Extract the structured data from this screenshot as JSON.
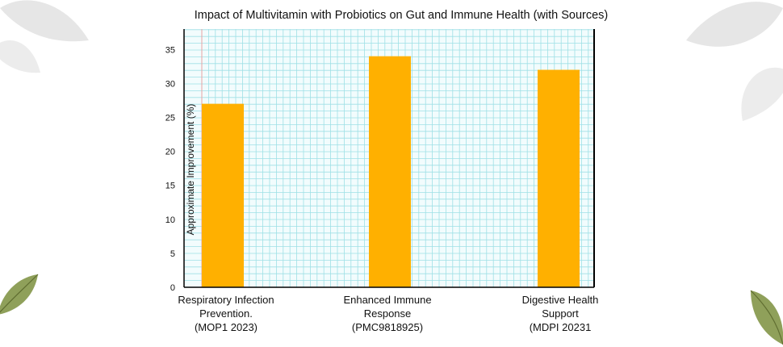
{
  "chart_data": {
    "type": "bar",
    "title": "Impact of Multivitamin with Probiotics on Gut and Immune Health (with Sources)",
    "xlabel": "",
    "ylabel": "Approximate Improvement (%)",
    "ylim": [
      0,
      38
    ],
    "yticks": [
      0,
      5,
      10,
      15,
      20,
      25,
      30,
      35
    ],
    "grid": true,
    "categories": [
      [
        "Respiratory Infection",
        "Prevention.",
        "(MOP1 2023)"
      ],
      [
        "Enhanced Immune",
        "Response",
        "(PMC9818925)"
      ],
      [
        "Digestive Health",
        "Support",
        "(MDPI 20231"
      ]
    ],
    "values": [
      27,
      34,
      32
    ],
    "colors": {
      "bar": "#ffb000",
      "grid": "#9ee0e6",
      "plot_bg": "#f2fcfd",
      "axis": "#000000",
      "left_rule": "#e8a3a3"
    }
  },
  "decorations": {
    "icons": [
      "leaf-icon-top-left",
      "leaf-icon-top-right",
      "leaf-icon-bottom-left",
      "leaf-icon-bottom-right"
    ]
  }
}
